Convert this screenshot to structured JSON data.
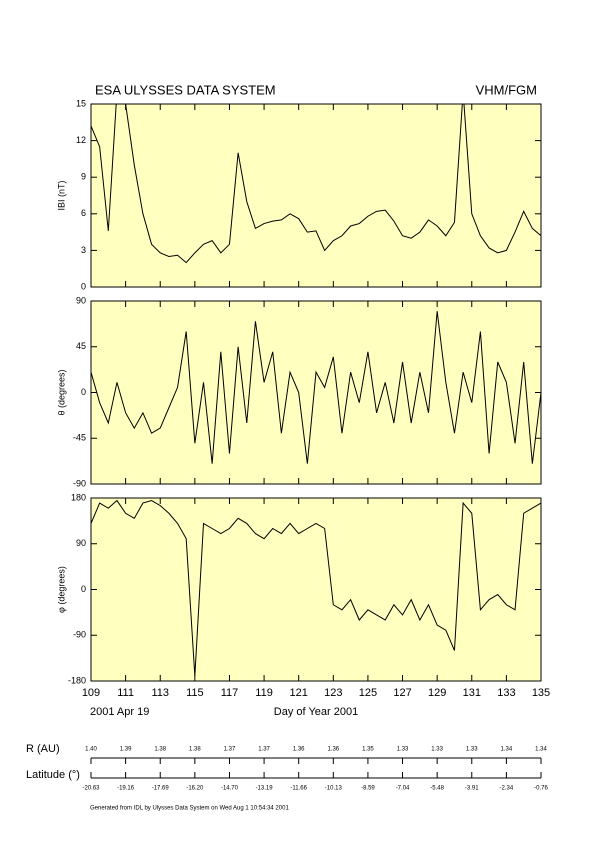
{
  "chart_data": [
    {
      "type": "line",
      "title": "ESA ULYSSES DATA SYSTEM",
      "instrument": "VHM/FGM",
      "ylabel": "IBI (nT)",
      "color": "#000000",
      "xlim": [
        109,
        135
      ],
      "xticks": [
        109,
        111,
        113,
        115,
        117,
        119,
        121,
        123,
        125,
        127,
        129,
        131,
        133,
        135
      ],
      "ylim": [
        0,
        15
      ],
      "yticks": [
        0,
        3,
        6,
        9,
        12,
        15
      ],
      "x": [
        109,
        109.5,
        110,
        110.5,
        111,
        111.5,
        112,
        112.5,
        113,
        113.5,
        114,
        114.5,
        115,
        115.5,
        116,
        116.5,
        117,
        117.5,
        118,
        118.5,
        119,
        119.5,
        120,
        120.5,
        121,
        121.5,
        122,
        122.5,
        123,
        123.5,
        124,
        124.5,
        125,
        125.5,
        126,
        126.5,
        127,
        127.5,
        128,
        128.5,
        129,
        129.5,
        130,
        130.5,
        131,
        131.5,
        132,
        132.5,
        133,
        133.5,
        134,
        134.5,
        135
      ],
      "values": [
        13.2,
        11.5,
        4.6,
        16,
        15,
        10,
        6,
        3.5,
        2.8,
        2.5,
        2.6,
        2.0,
        2.8,
        3.5,
        3.8,
        2.8,
        3.5,
        11,
        7,
        4.8,
        5.2,
        5.4,
        5.5,
        6,
        5.6,
        4.5,
        4.6,
        3.0,
        3.8,
        4.2,
        5.0,
        5.2,
        5.8,
        6.2,
        6.3,
        5.4,
        4.2,
        4.0,
        4.5,
        5.5,
        5.0,
        4.2,
        5.3,
        16,
        6,
        4.2,
        3.2,
        2.8,
        3.0,
        4.5,
        6.2,
        4.8,
        4.2
      ]
    },
    {
      "type": "line",
      "ylabel": "θ (degrees)",
      "color": "#000000",
      "xlim": [
        109,
        135
      ],
      "xticks": [
        109,
        111,
        113,
        115,
        117,
        119,
        121,
        123,
        125,
        127,
        129,
        131,
        133,
        135
      ],
      "ylim": [
        -90,
        90
      ],
      "yticks": [
        -90,
        -45,
        0,
        45,
        90
      ],
      "x": [
        109,
        109.5,
        110,
        110.5,
        111,
        111.5,
        112,
        112.5,
        113,
        113.5,
        114,
        114.5,
        115,
        115.5,
        116,
        116.5,
        117,
        117.5,
        118,
        118.5,
        119,
        119.5,
        120,
        120.5,
        121,
        121.5,
        122,
        122.5,
        123,
        123.5,
        124,
        124.5,
        125,
        125.5,
        126,
        126.5,
        127,
        127.5,
        128,
        128.5,
        129,
        129.5,
        130,
        130.5,
        131,
        131.5,
        132,
        132.5,
        133,
        133.5,
        134,
        134.5,
        135
      ],
      "values": [
        20,
        -10,
        -30,
        10,
        -20,
        -35,
        -20,
        -40,
        -35,
        -15,
        5,
        60,
        -50,
        10,
        -70,
        40,
        -60,
        45,
        -30,
        70,
        10,
        40,
        -40,
        20,
        0,
        -70,
        20,
        5,
        35,
        -40,
        20,
        -10,
        40,
        -20,
        10,
        -30,
        30,
        -30,
        20,
        -20,
        80,
        10,
        -40,
        20,
        -10,
        60,
        -60,
        30,
        10,
        -50,
        30,
        -70,
        0
      ]
    },
    {
      "type": "line",
      "ylabel": "φ (degrees)",
      "xlabel": "Day of Year 2001",
      "start_date": "2001 Apr 19",
      "color": "#000000",
      "xlim": [
        109,
        135
      ],
      "xticks": [
        109,
        111,
        113,
        115,
        117,
        119,
        121,
        123,
        125,
        127,
        129,
        131,
        133,
        135
      ],
      "ylim": [
        -180,
        180
      ],
      "yticks": [
        -180,
        -90,
        0,
        90,
        180
      ],
      "x": [
        109,
        109.5,
        110,
        110.5,
        111,
        111.5,
        112,
        112.5,
        113,
        113.5,
        114,
        114.5,
        115,
        115.5,
        116,
        116.5,
        117,
        117.5,
        118,
        118.5,
        119,
        119.5,
        120,
        120.5,
        121,
        121.5,
        122,
        122.5,
        123,
        123.5,
        124,
        124.5,
        125,
        125.5,
        126,
        126.5,
        127,
        127.5,
        128,
        128.5,
        129,
        129.5,
        130,
        130.5,
        131,
        131.5,
        132,
        132.5,
        133,
        133.5,
        134,
        134.5,
        135
      ],
      "values": [
        130,
        170,
        160,
        175,
        150,
        140,
        170,
        175,
        165,
        150,
        130,
        100,
        -170,
        130,
        120,
        110,
        120,
        140,
        130,
        110,
        100,
        120,
        110,
        130,
        110,
        120,
        130,
        120,
        -30,
        -40,
        -20,
        -60,
        -40,
        -50,
        -60,
        -30,
        -50,
        -20,
        -60,
        -30,
        -70,
        -80,
        -120,
        170,
        150,
        -40,
        -20,
        -10,
        -30,
        -40,
        150,
        160,
        170
      ]
    }
  ],
  "ephemeris": {
    "r_label": "R (AU)",
    "r_values": [
      "1.40",
      "1.39",
      "1.38",
      "1.38",
      "1.37",
      "1.37",
      "1.36",
      "1.36",
      "1.35",
      "1.33",
      "1.33",
      "1.33",
      "1.34",
      "1.34"
    ],
    "lat_label": "Latitude (°)",
    "lat_values": [
      "-20.63",
      "-19.16",
      "-17.69",
      "-16.20",
      "-14.70",
      "-13.19",
      "-11.66",
      "-10.13",
      "-8.59",
      "-7.04",
      "-5.48",
      "-3.91",
      "-2.34",
      "-0.76"
    ]
  },
  "footer": "Generated from IDL by Ulysses Data System on Wed Aug  1 10:54:34 2001"
}
